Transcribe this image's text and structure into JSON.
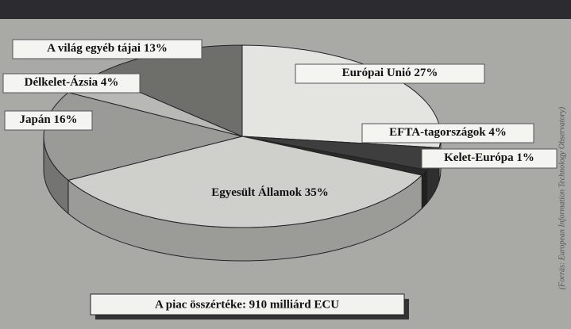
{
  "chart_data": {
    "type": "pie3d",
    "categories": [
      "Európai Unió",
      "EFTA-tagországok",
      "Kelet-Európa",
      "Egyesült Államok",
      "Japán",
      "Délkelet-Ázsia",
      "A világ egyéb tájai"
    ],
    "values": [
      27,
      4,
      1,
      35,
      16,
      4,
      13
    ],
    "value_labels": [
      "27%",
      "4%",
      "1%",
      "35%",
      "16%",
      "4%",
      "13%"
    ],
    "colors": [
      "#e4e4e0",
      "#3e3e3e",
      "#2a2a2a",
      "#cfcfcb",
      "#9a9a96",
      "#b8b8b4",
      "#6e6e6a"
    ],
    "footer": "A piac összértéke: 910 milliárd ECU",
    "source": "(Forrás: European Information Technology Observatory)"
  }
}
